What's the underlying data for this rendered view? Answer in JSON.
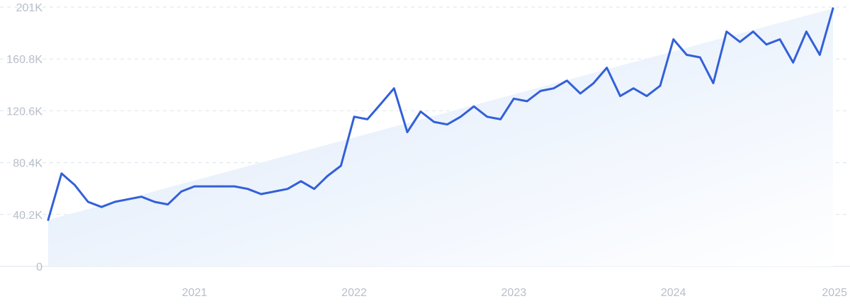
{
  "chart_data": {
    "type": "line",
    "title": "",
    "xlabel": "",
    "ylabel": "",
    "y_ticks": [
      "0",
      "40.2K",
      "80.4K",
      "120.6K",
      "160.8K",
      "201K"
    ],
    "y_tick_values": [
      0,
      40200,
      80400,
      120600,
      160800,
      201000
    ],
    "x_ticks": [
      "2021",
      "2022",
      "2023",
      "2024",
      "2025"
    ],
    "x_tick_values": [
      2021,
      2022,
      2023,
      2024,
      2025
    ],
    "ylim": [
      0,
      201000
    ],
    "xlim": [
      2020.083,
      2025.0
    ],
    "grid": true,
    "legend": "none",
    "colors": {
      "line": "#3260d9",
      "trend_fill": "#dbe8fa",
      "grid": "#dde3ec",
      "tick_text": "#b8bec8"
    },
    "series": [
      {
        "x": [
          2020.083,
          2020.167,
          2020.25,
          2020.333,
          2020.417,
          2020.5,
          2020.583,
          2020.667,
          2020.75,
          2020.833,
          2020.917,
          2021.0,
          2021.083,
          2021.167,
          2021.25,
          2021.333,
          2021.417,
          2021.5,
          2021.583,
          2021.667,
          2021.75,
          2021.833,
          2021.917,
          2022.0,
          2022.083,
          2022.167,
          2022.25,
          2022.333,
          2022.417,
          2022.5,
          2022.583,
          2022.667,
          2022.75,
          2022.833,
          2022.917,
          2023.0,
          2023.083,
          2023.167,
          2023.25,
          2023.333,
          2023.417,
          2023.5,
          2023.583,
          2023.667,
          2023.75,
          2023.833,
          2023.917,
          2024.0,
          2024.083,
          2024.167,
          2024.25,
          2024.333,
          2024.417,
          2024.5,
          2024.583,
          2024.667,
          2024.75,
          2024.833,
          2024.917,
          2025.0
        ],
        "values": [
          36000,
          72000,
          63000,
          50000,
          46000,
          50000,
          52000,
          54000,
          50000,
          48000,
          58000,
          62000,
          62000,
          62000,
          62000,
          60000,
          56000,
          58000,
          60000,
          66000,
          60000,
          70000,
          78000,
          116000,
          114000,
          126000,
          138000,
          104000,
          120000,
          112000,
          110000,
          116000,
          124000,
          116000,
          114000,
          130000,
          128000,
          136000,
          138000,
          144000,
          134000,
          142000,
          154000,
          132000,
          138000,
          132000,
          140000,
          176000,
          164000,
          162000,
          142000,
          182000,
          174000,
          182000,
          172000,
          176000,
          158000,
          182000,
          164000,
          200000
        ]
      }
    ],
    "trend": {
      "x": [
        2020.083,
        2025.0
      ],
      "values": [
        36000,
        200000
      ]
    }
  }
}
